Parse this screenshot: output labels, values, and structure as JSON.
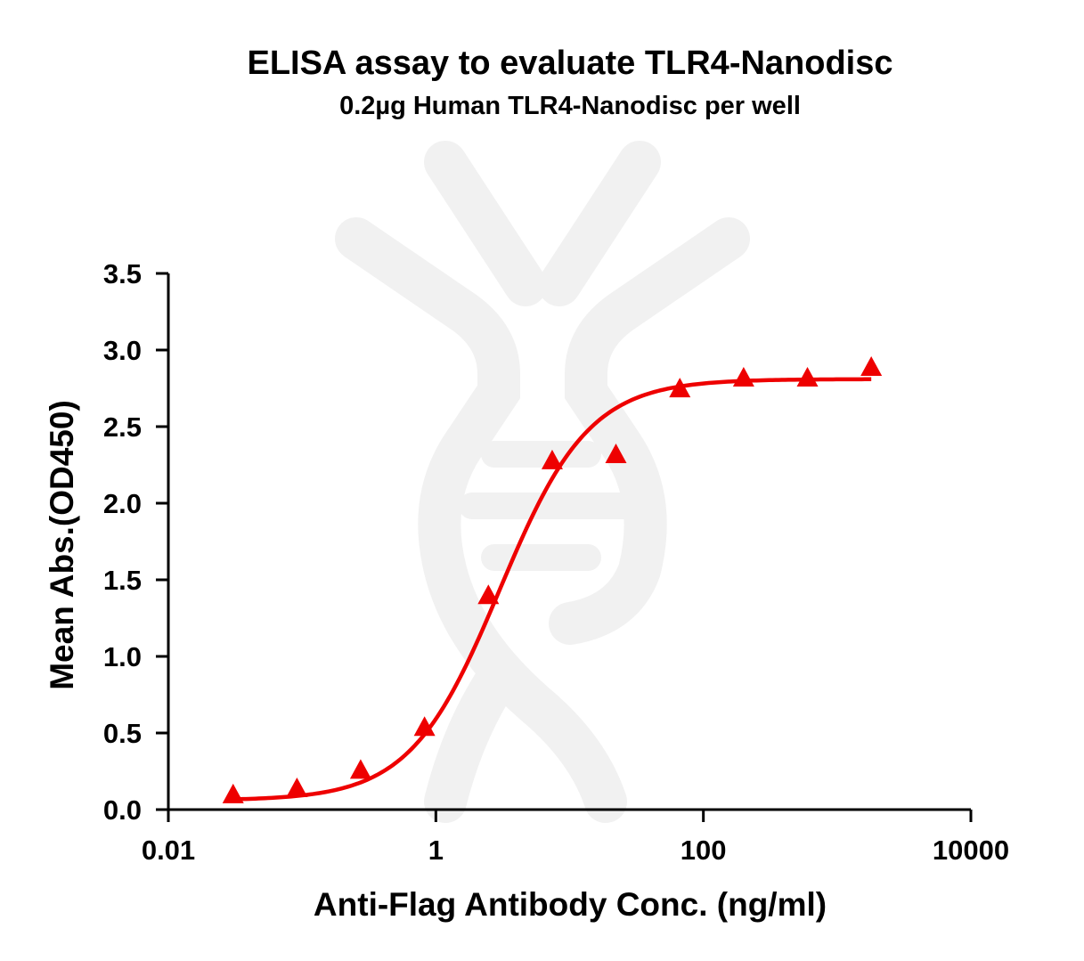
{
  "chart_data": {
    "type": "scatter",
    "title": "ELISA assay to evaluate TLR4-Nanodisc",
    "subtitle": "0.2µg Human TLR4-Nanodisc per well",
    "xlabel": "Anti-Flag Antibody Conc. (ng/ml)",
    "ylabel": "Mean Abs.(OD450)",
    "x_scale": "log",
    "xlim": [
      0.01,
      10000
    ],
    "ylim": [
      0,
      3.5
    ],
    "x_ticks": [
      0.01,
      1,
      100,
      10000
    ],
    "x_tick_labels": [
      "0.01",
      "1",
      "100",
      "10000"
    ],
    "y_ticks": [
      0,
      0.5,
      1,
      1.5,
      2,
      2.5,
      3,
      3.5
    ],
    "y_tick_labels": [
      "0.0",
      "0.5",
      "1.0",
      "1.5",
      "2.0",
      "2.5",
      "3.0",
      "3.5"
    ],
    "grid": false,
    "legend": "none",
    "series": [
      {
        "marker": "triangle",
        "color": "#ee0000",
        "fit": "four-parameter logistic",
        "x": [
          0.0305,
          0.0915,
          0.274,
          0.823,
          2.47,
          7.41,
          22.2,
          66.7,
          200,
          600,
          1800
        ],
        "y": [
          0.09,
          0.13,
          0.25,
          0.53,
          1.39,
          2.27,
          2.31,
          2.74,
          2.81,
          2.81,
          2.88
        ],
        "fit_params": {
          "bottom": 0.06,
          "top": 2.81,
          "ec50": 3.0,
          "hill": 1.3
        }
      }
    ]
  }
}
